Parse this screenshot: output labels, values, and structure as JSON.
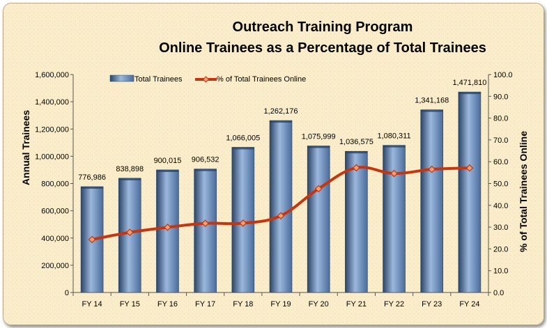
{
  "colors": {
    "bar": "#4a6c9c",
    "bar_dark": "#2b4466",
    "bar_light": "#9bb7dc",
    "line": "#c8340e",
    "marker_fill": "#f0a070",
    "background": "#faedcb"
  },
  "chart_data": {
    "type": "bar",
    "title_lines": [
      "Outreach Training Program",
      "Online Trainees as a Percentage of Total Trainees"
    ],
    "categories": [
      "FY 14",
      "FY 15",
      "FY 16",
      "FY 17",
      "FY 18",
      "FY 19",
      "FY 20",
      "FY 21",
      "FY 22",
      "FY 23",
      "FY 24"
    ],
    "ylabel": "Annual Trainees",
    "y2label": "% of Total Trainees Online",
    "ylim": [
      0,
      1600000
    ],
    "y2lim": [
      0,
      100
    ],
    "yticks": [
      "0",
      "200,000",
      "400,000",
      "600,000",
      "800,000",
      "1,000,000",
      "1,200,000",
      "1,400,000",
      "1,600,000"
    ],
    "y2ticks": [
      "0.0",
      "10.0",
      "20.0",
      "30.0",
      "40.0",
      "50.0",
      "60.0",
      "70.0",
      "80.0",
      "90.0",
      "100.0"
    ],
    "legend_position": "top-left",
    "grid": false,
    "series": [
      {
        "name": "Total Trainees",
        "type": "bar",
        "axis": "left",
        "values": [
          776986,
          838898,
          900015,
          906532,
          1066005,
          1262176,
          1075999,
          1036575,
          1080311,
          1341168,
          1471810
        ],
        "labels": [
          "776,986",
          "838,898",
          "900,015",
          "906,532",
          "1,066,005",
          "1,262,176",
          "1,075,999",
          "1,036,575",
          "1,080,311",
          "1,341,168",
          "1,471,810"
        ]
      },
      {
        "name": "% of Total Trainees Online",
        "type": "line",
        "axis": "right",
        "values": [
          24.3,
          27.6,
          29.9,
          31.7,
          31.8,
          35.2,
          47.6,
          57.2,
          54.6,
          56.5,
          57.1
        ]
      }
    ]
  }
}
